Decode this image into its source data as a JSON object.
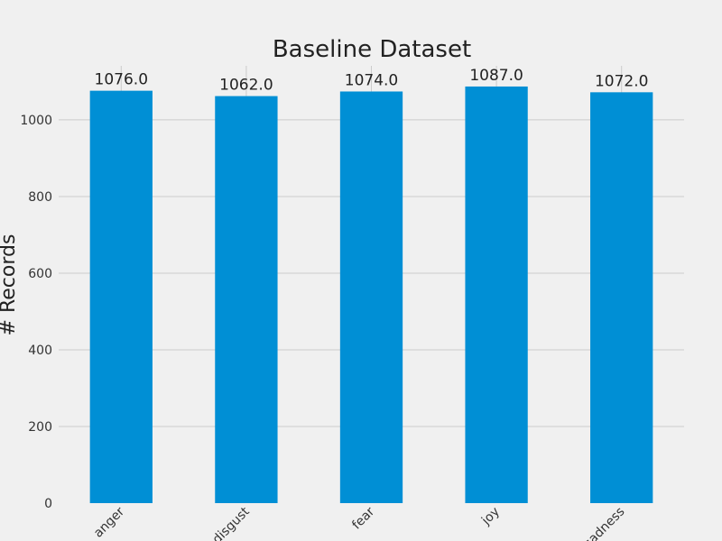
{
  "chart_data": {
    "type": "bar",
    "title": "Baseline Dataset",
    "xlabel": "",
    "ylabel": "# Records",
    "categories": [
      "anger",
      "disgust",
      "fear",
      "joy",
      "sadness"
    ],
    "values": [
      1076,
      1062,
      1074,
      1087,
      1072
    ],
    "data_labels": [
      "1076.0",
      "1062.0",
      "1074.0",
      "1087.0",
      "1072.0"
    ],
    "yticks": [
      0,
      200,
      400,
      600,
      800,
      1000
    ],
    "ylim": [
      0,
      1141
    ],
    "grid": true,
    "bar_color": "#008fd5",
    "background": "#f0f0f0"
  }
}
